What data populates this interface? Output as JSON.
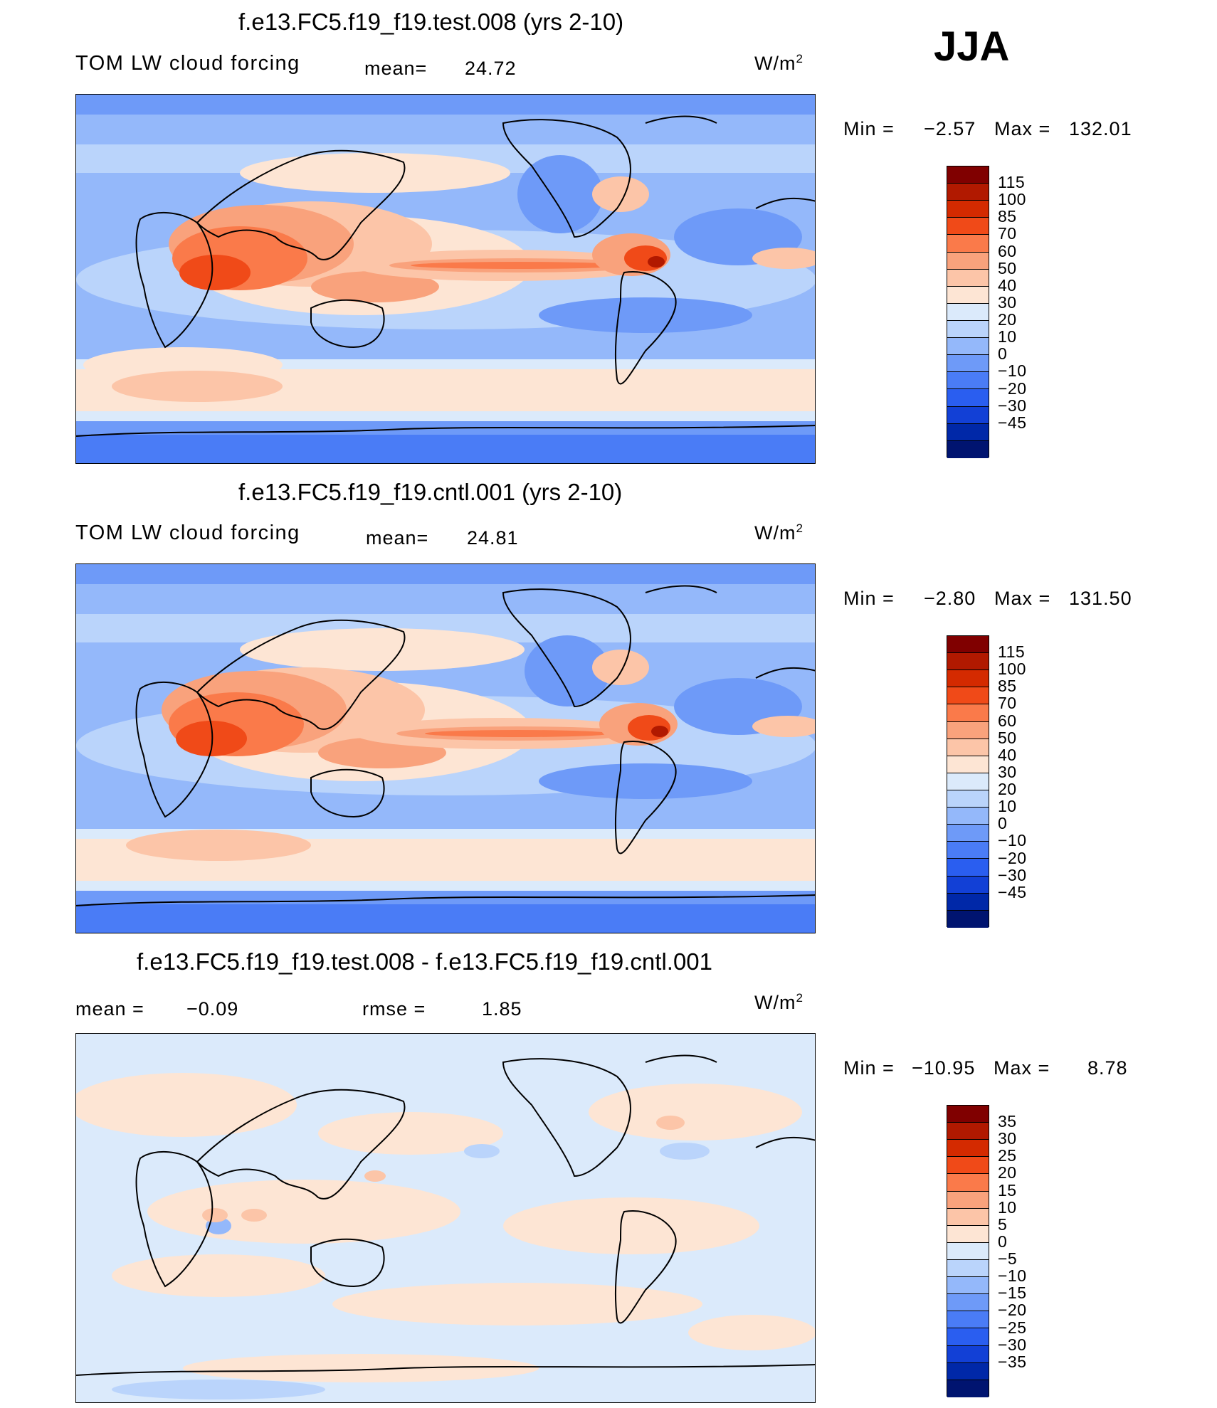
{
  "season": "JJA",
  "units": "W/m",
  "units_exp": "2",
  "panels": [
    {
      "title": "f.e13.FC5.f19_f19.test.008 (yrs 2-10)",
      "label_left": "TOM  LW  cloud  forcing",
      "stat1_label": "mean=",
      "stat1_value": "24.72",
      "stat2_label": "",
      "stat2_value": "",
      "min_label": "Min  =",
      "min_value": "−2.57",
      "max_label": "Max  =",
      "max_value": "132.01",
      "colorbar_labels": [
        "115",
        "100",
        "85",
        "70",
        "60",
        "50",
        "40",
        "30",
        "20",
        "10",
        "0",
        "−10",
        "−20",
        "−30",
        "−45"
      ],
      "colors": [
        "#800000",
        "#b11900",
        "#d42a00",
        "#f04a18",
        "#fa7a4a",
        "#f9a27c",
        "#fcc5a8",
        "#fde5d4",
        "#dbeafb",
        "#bad4fb",
        "#94b8fa",
        "#6e9af8",
        "#4a7cf6",
        "#2a5ef0",
        "#1240d6",
        "#0028a8",
        "#001470"
      ]
    },
    {
      "title": "f.e13.FC5.f19_f19.cntl.001 (yrs 2-10)",
      "label_left": "TOM  LW  cloud  forcing",
      "stat1_label": "mean=",
      "stat1_value": "24.81",
      "stat2_label": "",
      "stat2_value": "",
      "min_label": "Min  =",
      "min_value": "−2.80",
      "max_label": "Max  =",
      "max_value": "131.50",
      "colorbar_labels": [
        "115",
        "100",
        "85",
        "70",
        "60",
        "50",
        "40",
        "30",
        "20",
        "10",
        "0",
        "−10",
        "−20",
        "−30",
        "−45"
      ],
      "colors": [
        "#800000",
        "#b11900",
        "#d42a00",
        "#f04a18",
        "#fa7a4a",
        "#f9a27c",
        "#fcc5a8",
        "#fde5d4",
        "#dbeafb",
        "#bad4fb",
        "#94b8fa",
        "#6e9af8",
        "#4a7cf6",
        "#2a5ef0",
        "#1240d6",
        "#0028a8",
        "#001470"
      ]
    },
    {
      "title": "f.e13.FC5.f19_f19.test.008 - f.e13.FC5.f19_f19.cntl.001",
      "label_left": "",
      "stat1_label": "mean  =",
      "stat1_value": "−0.09",
      "stat2_label": "rmse  =",
      "stat2_value": "1.85",
      "min_label": "Min  =",
      "min_value": "−10.95",
      "max_label": "Max  =",
      "max_value": "8.78",
      "colorbar_labels": [
        "35",
        "30",
        "25",
        "20",
        "15",
        "10",
        "5",
        "0",
        "−5",
        "−10",
        "−15",
        "−20",
        "−25",
        "−30",
        "−35"
      ],
      "colors": [
        "#800000",
        "#b11900",
        "#d42a00",
        "#f04a18",
        "#fa7a4a",
        "#f9a27c",
        "#fcc5a8",
        "#fde5d4",
        "#dbeafb",
        "#bad4fb",
        "#94b8fa",
        "#6e9af8",
        "#4a7cf6",
        "#2a5ef0",
        "#1240d6",
        "#0028a8",
        "#001470"
      ]
    }
  ]
}
